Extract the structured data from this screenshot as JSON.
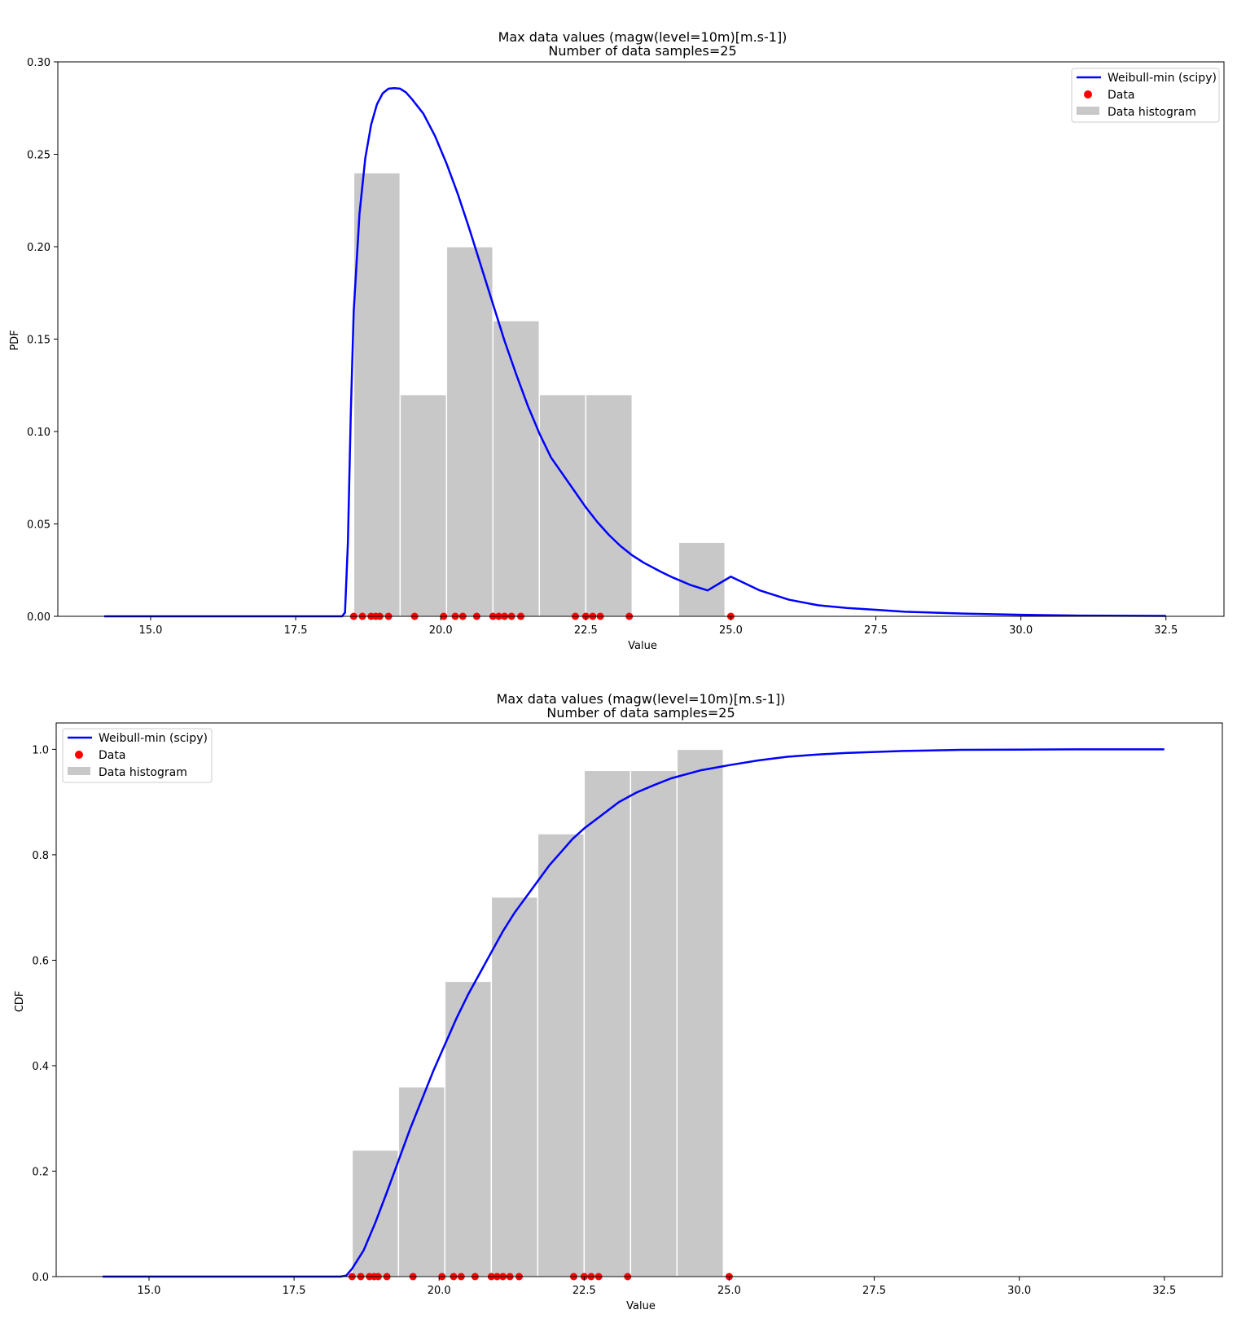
{
  "colors": {
    "curve": "#0000ff",
    "points": "#ff0000",
    "bars": "#c8c8c8",
    "bar_edge": "#ffffff",
    "axes": "#000000"
  },
  "legend_labels": {
    "curve": "Weibull-min (scipy)",
    "points": "Data",
    "bars": "Data histogram"
  },
  "data_points_x": [
    18.5,
    18.65,
    18.8,
    18.88,
    18.95,
    19.1,
    19.55,
    20.05,
    20.25,
    20.38,
    20.62,
    20.9,
    21.0,
    21.1,
    21.22,
    21.38,
    22.32,
    22.5,
    22.62,
    22.75,
    23.25,
    25.0
  ],
  "chart_data": [
    {
      "type": "bar",
      "title": "Max data values (magw(level=10m)[m.s-1])",
      "subtitle": "Number of data samples=25",
      "xlabel": "Value",
      "ylabel": "PDF",
      "xlim": [
        13.4,
        33.5
      ],
      "ylim": [
        0,
        0.3
      ],
      "xticks": [
        "15.0",
        "17.5",
        "20.0",
        "22.5",
        "25.0",
        "27.5",
        "30.0",
        "32.5"
      ],
      "yticks": [
        "0.00",
        "0.05",
        "0.10",
        "0.15",
        "0.20",
        "0.25",
        "0.30"
      ],
      "legend_position": "upper-right",
      "histogram": {
        "bin_edges": [
          18.5,
          19.3,
          20.1,
          20.9,
          21.7,
          22.5,
          23.3,
          24.1,
          24.9
        ],
        "values": [
          0.24,
          0.12,
          0.2,
          0.16,
          0.12,
          0.12,
          0.0,
          0.04
        ]
      },
      "curve": {
        "name": "Weibull-min (scipy)",
        "x": [
          14.2,
          18.3,
          18.35,
          18.4,
          18.45,
          18.5,
          18.6,
          18.7,
          18.8,
          18.9,
          19.0,
          19.1,
          19.2,
          19.3,
          19.4,
          19.5,
          19.7,
          19.9,
          20.1,
          20.3,
          20.5,
          20.7,
          20.9,
          21.1,
          21.3,
          21.5,
          21.7,
          21.9,
          22.1,
          22.3,
          22.5,
          22.7,
          22.9,
          23.1,
          23.3,
          23.5,
          23.8,
          24.0,
          24.3,
          24.6,
          25.0,
          25.5,
          26.0,
          26.5,
          27.0,
          27.5,
          28.0,
          29.0,
          30.0,
          31.0,
          32.5
        ],
        "y": [
          0.0,
          0.0,
          0.002,
          0.04,
          0.11,
          0.165,
          0.218,
          0.248,
          0.266,
          0.277,
          0.283,
          0.2855,
          0.2858,
          0.2855,
          0.2835,
          0.28,
          0.272,
          0.26,
          0.245,
          0.228,
          0.209,
          0.189,
          0.169,
          0.149,
          0.131,
          0.114,
          0.099,
          0.086,
          0.077,
          0.068,
          0.059,
          0.051,
          0.044,
          0.038,
          0.033,
          0.029,
          0.024,
          0.021,
          0.017,
          0.014,
          0.0215,
          0.014,
          0.009,
          0.006,
          0.0045,
          0.0035,
          0.0025,
          0.0015,
          0.0008,
          0.0004,
          0.0002
        ]
      }
    },
    {
      "type": "bar",
      "title": "Max data values (magw(level=10m)[m.s-1])",
      "subtitle": "Number of data samples=25",
      "xlabel": "Value",
      "ylabel": "CDF",
      "xlim": [
        13.4,
        33.5
      ],
      "ylim": [
        0,
        1.05
      ],
      "xticks": [
        "15.0",
        "17.5",
        "20.0",
        "22.5",
        "25.0",
        "27.5",
        "30.0",
        "32.5"
      ],
      "yticks": [
        "0.0",
        "0.2",
        "0.4",
        "0.6",
        "0.8",
        "1.0"
      ],
      "legend_position": "upper-left",
      "histogram": {
        "bin_edges": [
          18.5,
          19.3,
          20.1,
          20.9,
          21.7,
          22.5,
          23.3,
          24.1,
          24.9
        ],
        "values": [
          0.24,
          0.36,
          0.56,
          0.72,
          0.84,
          0.96,
          0.96,
          1.0
        ]
      },
      "curve": {
        "name": "Weibull-min (scipy)",
        "x": [
          14.2,
          18.3,
          18.4,
          18.5,
          18.7,
          18.9,
          19.1,
          19.3,
          19.5,
          19.7,
          19.9,
          20.1,
          20.3,
          20.5,
          20.7,
          20.9,
          21.1,
          21.3,
          21.5,
          21.7,
          21.9,
          22.1,
          22.3,
          22.5,
          22.8,
          23.1,
          23.4,
          23.7,
          24.0,
          24.5,
          25.0,
          25.5,
          26.0,
          26.5,
          27.0,
          28.0,
          29.0,
          30.0,
          31.0,
          32.5
        ],
        "y": [
          0.0,
          0.0,
          0.002,
          0.015,
          0.05,
          0.102,
          0.16,
          0.22,
          0.28,
          0.335,
          0.39,
          0.44,
          0.49,
          0.535,
          0.575,
          0.615,
          0.655,
          0.69,
          0.72,
          0.75,
          0.78,
          0.805,
          0.83,
          0.85,
          0.875,
          0.9,
          0.918,
          0.932,
          0.945,
          0.96,
          0.97,
          0.979,
          0.986,
          0.99,
          0.993,
          0.997,
          0.999,
          0.9995,
          1.0,
          1.0
        ]
      }
    }
  ]
}
